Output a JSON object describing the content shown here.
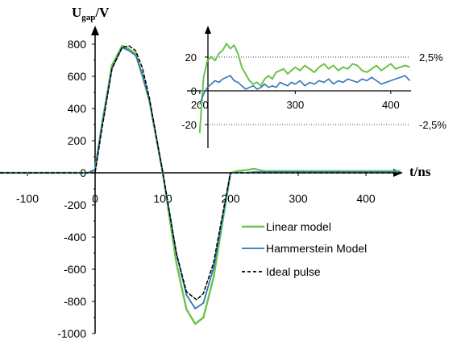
{
  "chart_data": {
    "type": "line",
    "x_axis": {
      "label": "t/ns",
      "ticks": [
        -100,
        0,
        100,
        200,
        300,
        400
      ],
      "range": [
        -140,
        450
      ]
    },
    "y_axis": {
      "label_main": "U",
      "label_sub": "gap",
      "label_unit": "/V",
      "ticks": [
        800,
        600,
        400,
        200,
        0,
        -200,
        -400,
        -600,
        -800,
        -1000
      ],
      "range": [
        -1000,
        850
      ]
    },
    "legend": {
      "placement": "lower-right",
      "entries": [
        "Linear model",
        "Hammerstein Model",
        "Ideal pulse"
      ]
    },
    "series": [
      {
        "name": "Linear model",
        "color": "#6cc24a",
        "style": "solid",
        "x": [
          -140,
          -100,
          -50,
          -10,
          0,
          10,
          25,
          40,
          50,
          60,
          70,
          80,
          100,
          120,
          135,
          148,
          160,
          175,
          190,
          200,
          210,
          220,
          235,
          250,
          300,
          400,
          450
        ],
        "y": [
          0,
          0,
          0,
          0,
          20,
          300,
          670,
          790,
          770,
          740,
          600,
          450,
          0,
          -560,
          -850,
          -940,
          -900,
          -650,
          -260,
          0,
          10,
          15,
          25,
          10,
          10,
          10,
          10
        ]
      },
      {
        "name": "Hammerstein Model",
        "color": "#2e75b6",
        "style": "solid",
        "x": [
          -140,
          -100,
          -50,
          -10,
          0,
          10,
          25,
          40,
          50,
          60,
          70,
          80,
          100,
          120,
          135,
          148,
          160,
          175,
          190,
          200,
          210,
          220,
          235,
          250,
          300,
          400,
          450
        ],
        "y": [
          0,
          0,
          0,
          0,
          20,
          290,
          650,
          780,
          760,
          730,
          610,
          460,
          0,
          -500,
          -760,
          -845,
          -810,
          -590,
          -240,
          0,
          0,
          0,
          5,
          5,
          5,
          5,
          5
        ]
      },
      {
        "name": "Ideal pulse",
        "color": "#000000",
        "style": "dashed",
        "x": [
          -140,
          -10,
          0,
          10,
          25,
          40,
          50,
          60,
          70,
          80,
          100,
          120,
          135,
          150,
          160,
          175,
          190,
          200,
          450
        ],
        "y": [
          0,
          0,
          0,
          270,
          650,
          780,
          790,
          760,
          650,
          470,
          0,
          -500,
          -740,
          -790,
          -750,
          -560,
          -220,
          0,
          0
        ]
      }
    ],
    "inset": {
      "x_ticks": [
        200,
        300,
        400
      ],
      "x_range": [
        185,
        425
      ],
      "y_ticks": [
        20,
        0,
        -20
      ],
      "y_range": [
        -30,
        34
      ],
      "reference_lines": [
        20,
        -20
      ],
      "reference_labels": [
        "2,5%",
        "-2,5%"
      ],
      "series": [
        {
          "name": "Linear model",
          "x": [
            200,
            204,
            208,
            212,
            216,
            220,
            224,
            228,
            232,
            236,
            240,
            244,
            248,
            252,
            256,
            260,
            264,
            268,
            272,
            276,
            280,
            284,
            288,
            292,
            296,
            300,
            305,
            310,
            315,
            320,
            325,
            330,
            335,
            340,
            345,
            350,
            355,
            360,
            365,
            370,
            375,
            380,
            385,
            390,
            395,
            400,
            405,
            410,
            415,
            420
          ],
          "y": [
            -25,
            8,
            18,
            20,
            18,
            22,
            24,
            28,
            25,
            27,
            22,
            14,
            10,
            6,
            4,
            5,
            3,
            7,
            9,
            7,
            11,
            12,
            13,
            10,
            12,
            14,
            12,
            15,
            13,
            11,
            14,
            16,
            13,
            15,
            12,
            14,
            13,
            16,
            15,
            12,
            11,
            13,
            15,
            12,
            14,
            16,
            13,
            14,
            15,
            14
          ]
        },
        {
          "name": "Hammerstein Model",
          "x": [
            200,
            204,
            208,
            212,
            216,
            220,
            224,
            228,
            232,
            236,
            240,
            244,
            248,
            252,
            256,
            260,
            264,
            268,
            272,
            276,
            280,
            284,
            288,
            292,
            296,
            300,
            305,
            310,
            315,
            320,
            325,
            330,
            335,
            340,
            345,
            350,
            355,
            360,
            365,
            370,
            375,
            380,
            385,
            390,
            395,
            400,
            405,
            410,
            415,
            420
          ],
          "y": [
            -8,
            -2,
            2,
            4,
            6,
            5,
            7,
            8,
            9,
            6,
            5,
            3,
            1,
            2,
            3,
            1,
            2,
            4,
            2,
            3,
            2,
            5,
            4,
            3,
            5,
            4,
            6,
            3,
            5,
            4,
            6,
            5,
            7,
            4,
            6,
            5,
            7,
            6,
            5,
            7,
            6,
            8,
            6,
            4,
            5,
            6,
            7,
            8,
            9,
            6
          ]
        }
      ]
    }
  }
}
